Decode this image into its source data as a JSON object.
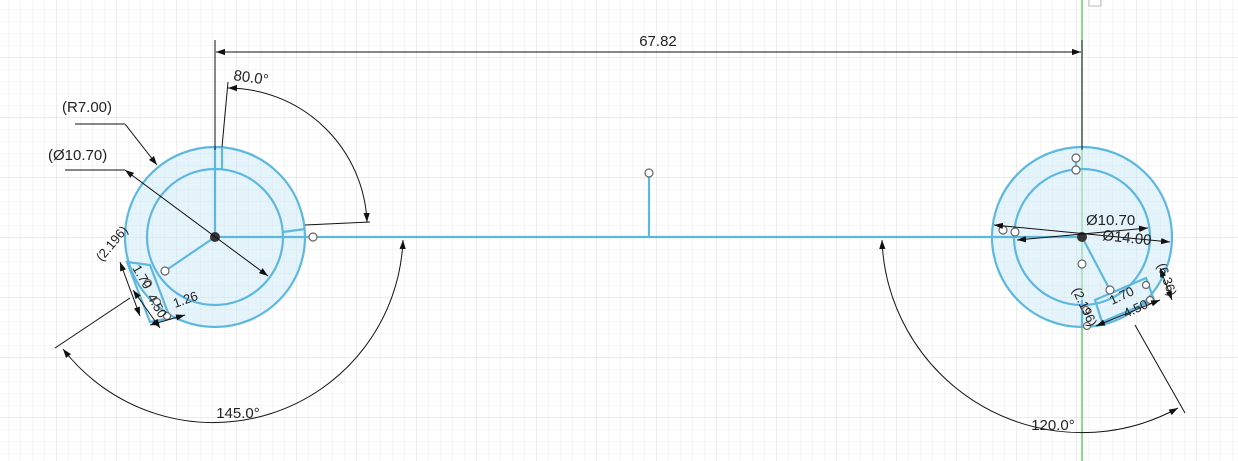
{
  "theme": {
    "background": "#ffffff",
    "grid_minor": "#ececec",
    "grid_major": "#d9d9d9",
    "sketch_line": "#5db8e0",
    "profile_fill": "#cfe9f6",
    "dimension_line": "#111111",
    "axis_green": "#4cc94c"
  },
  "dimensions": {
    "overall_length": "67.82",
    "left_top_angle": "80.0°",
    "left_radius": "(R7.00)",
    "left_diameter": "(Ø10.70)",
    "left_bottom_angle": "145.0°",
    "left_small_1": "(2.196)",
    "left_small_2": "1.70",
    "left_small_3": "4.50",
    "left_small_4": "1.26",
    "right_inner_diameter": "Ø10.70",
    "right_outer_diameter": "Ø14.00",
    "right_bottom_angle": "120.0°",
    "right_small_1": "(2.196)",
    "right_small_2": "(6.36)",
    "right_small_3": "1.70",
    "right_small_4": "4.50"
  }
}
